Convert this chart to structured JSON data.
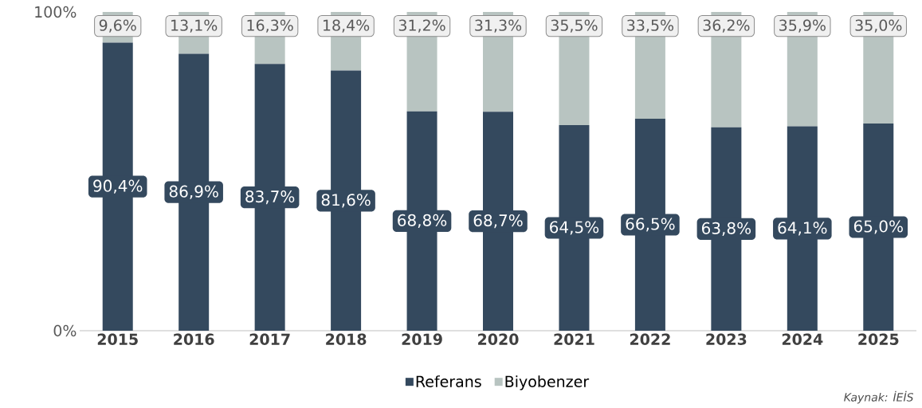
{
  "chart_data": {
    "type": "bar",
    "stacked": true,
    "categories": [
      "2015",
      "2016",
      "2017",
      "2018",
      "2019",
      "2020",
      "2021",
      "2022",
      "2023",
      "2024",
      "2025"
    ],
    "series": [
      {
        "name": "Referans",
        "color": "#34495e",
        "values": [
          90.4,
          86.9,
          83.7,
          81.6,
          68.8,
          68.7,
          64.5,
          66.5,
          63.8,
          64.1,
          65.0
        ],
        "value_labels": [
          "90,4%",
          "86,9%",
          "83,7%",
          "81,6%",
          "68,8%",
          "68,7%",
          "64,5%",
          "66,5%",
          "63,8%",
          "64,1%",
          "65,0%"
        ]
      },
      {
        "name": "Biyobenzer",
        "color": "#b8c4c1",
        "values": [
          9.6,
          13.1,
          16.3,
          18.4,
          31.2,
          31.3,
          35.5,
          33.5,
          36.2,
          35.9,
          35.0
        ],
        "value_labels": [
          "9,6%",
          "13,1%",
          "16,3%",
          "18,4%",
          "31,2%",
          "31,3%",
          "35,5%",
          "33,5%",
          "36,2%",
          "35,9%",
          "35,0%"
        ]
      }
    ],
    "ylim": [
      0,
      100
    ],
    "yticks": [
      {
        "value": 0,
        "label": "0%"
      },
      {
        "value": 100,
        "label": "100%"
      }
    ],
    "legend": "bottom",
    "annotations": [
      "Kaynak: İEİS"
    ]
  }
}
